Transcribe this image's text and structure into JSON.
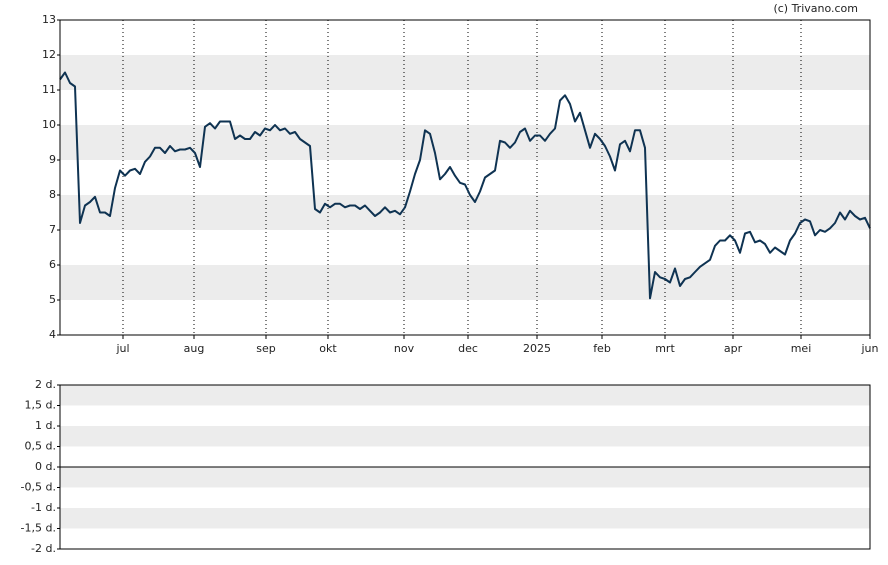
{
  "chart_data": [
    {
      "type": "line",
      "annotation": "(c) Trivano.com",
      "color": "#0f3352",
      "bands": true,
      "xlim": [
        0,
        162
      ],
      "xticks": [
        {
          "value": 12.6,
          "label": "jul"
        },
        {
          "value": 26.8,
          "label": "aug"
        },
        {
          "value": 41.2,
          "label": "sep"
        },
        {
          "value": 53.6,
          "label": "okt"
        },
        {
          "value": 68.8,
          "label": "nov"
        },
        {
          "value": 81.6,
          "label": "dec"
        },
        {
          "value": 95.4,
          "label": "2025"
        },
        {
          "value": 108.4,
          "label": "feb"
        },
        {
          "value": 121,
          "label": "mrt"
        },
        {
          "value": 134.6,
          "label": "apr"
        },
        {
          "value": 148.2,
          "label": "mei"
        },
        {
          "value": 162,
          "label": "jun"
        }
      ],
      "ylim": [
        4,
        13
      ],
      "yticks": [
        4,
        5,
        6,
        7,
        8,
        9,
        10,
        11,
        12,
        13
      ],
      "values": [
        11.3,
        11.5,
        11.2,
        11.1,
        7.2,
        7.7,
        7.8,
        7.95,
        7.5,
        7.5,
        7.4,
        8.2,
        8.7,
        8.55,
        8.7,
        8.75,
        8.6,
        8.95,
        9.1,
        9.35,
        9.35,
        9.2,
        9.4,
        9.25,
        9.3,
        9.3,
        9.35,
        9.2,
        8.8,
        9.95,
        10.05,
        9.9,
        10.1,
        10.1,
        10.1,
        9.6,
        9.7,
        9.6,
        9.6,
        9.8,
        9.7,
        9.9,
        9.85,
        10.0,
        9.85,
        9.9,
        9.75,
        9.8,
        9.6,
        9.5,
        9.4,
        7.6,
        7.5,
        7.75,
        7.65,
        7.75,
        7.75,
        7.65,
        7.7,
        7.7,
        7.6,
        7.7,
        7.55,
        7.4,
        7.5,
        7.65,
        7.5,
        7.55,
        7.45,
        7.65,
        8.1,
        8.6,
        9.0,
        9.85,
        9.75,
        9.2,
        8.45,
        8.6,
        8.8,
        8.55,
        8.35,
        8.3,
        8.0,
        7.8,
        8.1,
        8.5,
        8.6,
        8.7,
        9.55,
        9.5,
        9.35,
        9.5,
        9.8,
        9.9,
        9.55,
        9.7,
        9.7,
        9.55,
        9.75,
        9.9,
        10.7,
        10.85,
        10.6,
        10.1,
        10.35,
        9.85,
        9.35,
        9.75,
        9.6,
        9.4,
        9.1,
        8.7,
        9.45,
        9.55,
        9.25,
        9.85,
        9.85,
        9.35,
        5.05,
        5.8,
        5.65,
        5.6,
        5.5,
        5.9,
        5.4,
        5.6,
        5.65,
        5.8,
        5.95,
        6.05,
        6.15,
        6.55,
        6.7,
        6.7,
        6.85,
        6.7,
        6.35,
        6.9,
        6.95,
        6.65,
        6.7,
        6.6,
        6.35,
        6.5,
        6.4,
        6.3,
        6.7,
        6.9,
        7.2,
        7.3,
        7.25,
        6.85,
        7.0,
        6.95,
        7.05,
        7.2,
        7.5,
        7.3,
        7.55,
        7.4,
        7.3,
        7.35,
        7.05
      ]
    },
    {
      "type": "bar",
      "bands": true,
      "zero_line": true,
      "ylim": [
        -2,
        2
      ],
      "yticks": [
        {
          "value": 2,
          "label": "2 d."
        },
        {
          "value": 1.5,
          "label": "1,5 d."
        },
        {
          "value": 1,
          "label": "1 d."
        },
        {
          "value": 0.5,
          "label": "0,5 d."
        },
        {
          "value": 0,
          "label": "0 d."
        },
        {
          "value": -0.5,
          "label": "-0,5 d."
        },
        {
          "value": -1,
          "label": "-1 d."
        },
        {
          "value": -1.5,
          "label": "-1,5 d."
        },
        {
          "value": -2,
          "label": "-2 d."
        }
      ]
    }
  ]
}
